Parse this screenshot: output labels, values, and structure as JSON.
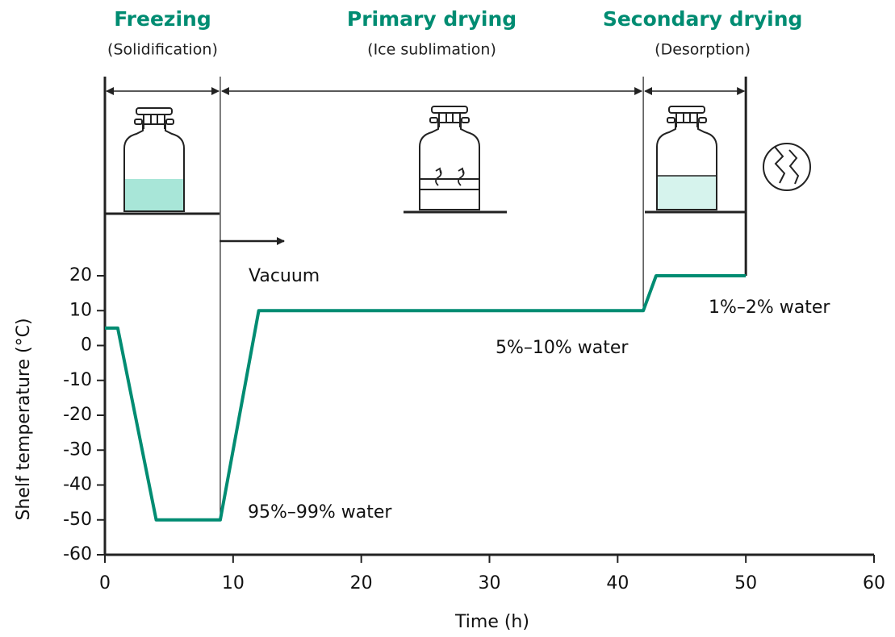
{
  "chart_data": {
    "type": "line",
    "phases": [
      {
        "name": "Freezing",
        "subtitle": "(Solidification)",
        "start": 0,
        "end": 9
      },
      {
        "name": "Primary drying",
        "subtitle": "(Ice sublimation)",
        "start": 9,
        "end": 42
      },
      {
        "name": "Secondary drying",
        "subtitle": "(Desorption)",
        "start": 42,
        "end": 50
      }
    ],
    "annotations": [
      "Vacuum",
      "95%–99% water",
      "5%–10% water",
      "1%–2% water"
    ],
    "x": [
      0,
      1,
      4,
      9,
      12,
      42,
      43,
      50
    ],
    "values": [
      5,
      5,
      -50,
      -50,
      10,
      10,
      20,
      20
    ],
    "color": "#008c72",
    "xlabel": "Time (h)",
    "ylabel": "Shelf temperature (°C)",
    "xlim": [
      0,
      60
    ],
    "xticks": [
      0,
      10,
      20,
      30,
      40,
      50,
      60
    ],
    "ylim": [
      -60,
      20
    ],
    "yticks": [
      -60,
      -50,
      -40,
      -30,
      -20,
      -10,
      0,
      10,
      20
    ]
  }
}
